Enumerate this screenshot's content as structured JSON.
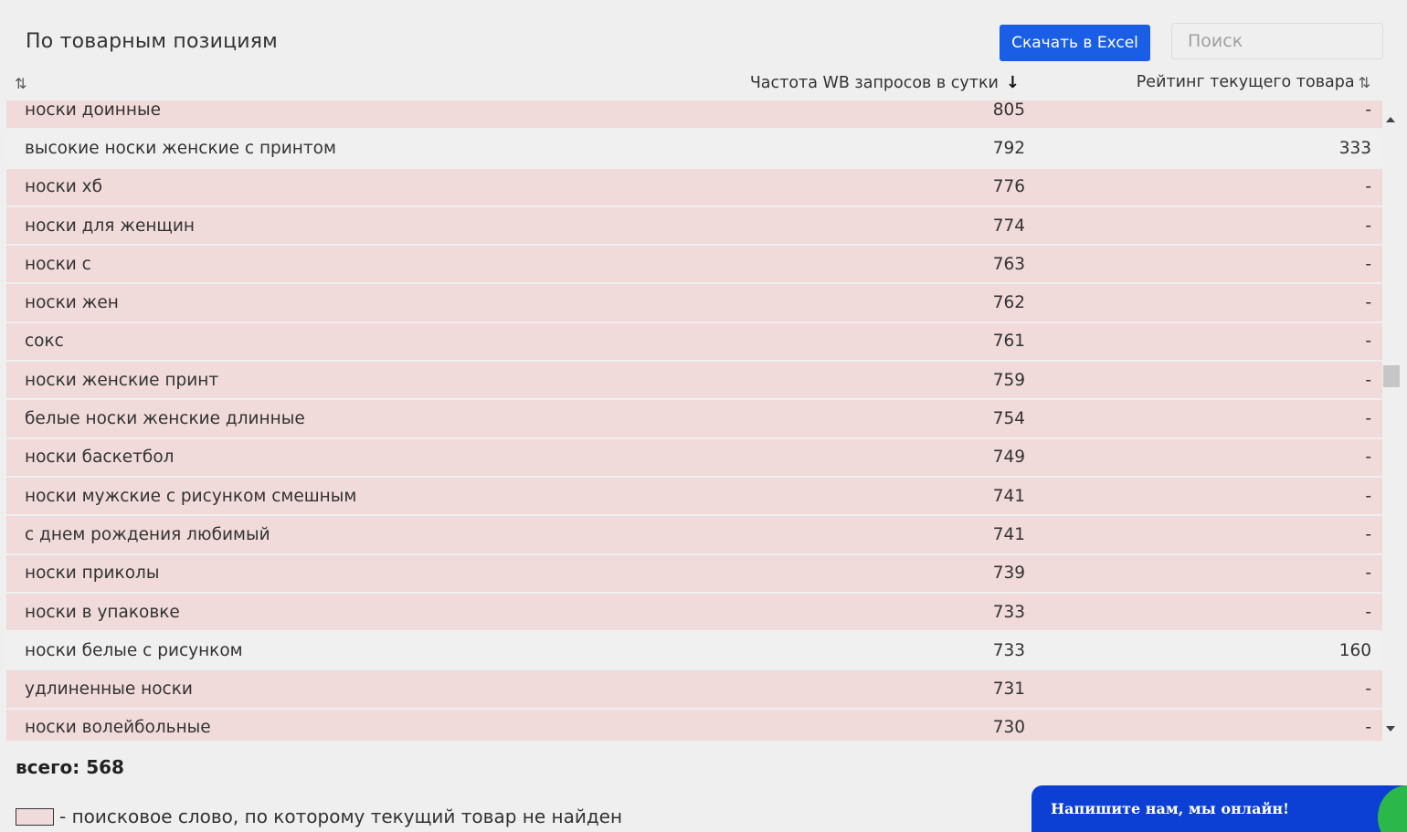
{
  "header": {
    "title": "По товарным позициям",
    "excel_button": "Скачать в Excel",
    "search_placeholder": "Поиск"
  },
  "columns": {
    "keyword_sort_icon": "⇅",
    "frequency": "Частота WB запросов в сутки",
    "frequency_sort_icon": "↓",
    "rating": "Рейтинг текущего товара",
    "rating_sort_icon": "⇅"
  },
  "rows": [
    {
      "keyword": "носки доинные",
      "frequency": "805",
      "rating": "-",
      "found": false
    },
    {
      "keyword": "высокие носки женские с принтом",
      "frequency": "792",
      "rating": "333",
      "found": true
    },
    {
      "keyword": "носки хб",
      "frequency": "776",
      "rating": "-",
      "found": false
    },
    {
      "keyword": "носки для женщин",
      "frequency": "774",
      "rating": "-",
      "found": false
    },
    {
      "keyword": "носки с",
      "frequency": "763",
      "rating": "-",
      "found": false
    },
    {
      "keyword": "носки жен",
      "frequency": "762",
      "rating": "-",
      "found": false
    },
    {
      "keyword": "сокс",
      "frequency": "761",
      "rating": "-",
      "found": false
    },
    {
      "keyword": "носки женские принт",
      "frequency": "759",
      "rating": "-",
      "found": false
    },
    {
      "keyword": "белые носки женские длинные",
      "frequency": "754",
      "rating": "-",
      "found": false
    },
    {
      "keyword": "носки баскетбол",
      "frequency": "749",
      "rating": "-",
      "found": false
    },
    {
      "keyword": "носки мужские с рисунком смешным",
      "frequency": "741",
      "rating": "-",
      "found": false
    },
    {
      "keyword": "с днем рождения любимый",
      "frequency": "741",
      "rating": "-",
      "found": false
    },
    {
      "keyword": "носки приколы",
      "frequency": "739",
      "rating": "-",
      "found": false
    },
    {
      "keyword": "носки в упаковке",
      "frequency": "733",
      "rating": "-",
      "found": false
    },
    {
      "keyword": "носки белые с рисунком",
      "frequency": "733",
      "rating": "160",
      "found": true
    },
    {
      "keyword": "удлиненные носки",
      "frequency": "731",
      "rating": "-",
      "found": false
    },
    {
      "keyword": "носки волейбольные",
      "frequency": "730",
      "rating": "-",
      "found": false
    }
  ],
  "footer": {
    "total": "всего: 568",
    "legend_text": "- поисковое слово, по которому текущий товар не найден"
  },
  "chat": {
    "label": "Напишите нам, мы онлайн!"
  },
  "colors": {
    "accent": "#1a5ee6",
    "missing_row": "#f0dada",
    "found_row": "#f0f0f0",
    "chat_bg": "#0c3fd3",
    "chat_bubble": "#2bb74a"
  }
}
